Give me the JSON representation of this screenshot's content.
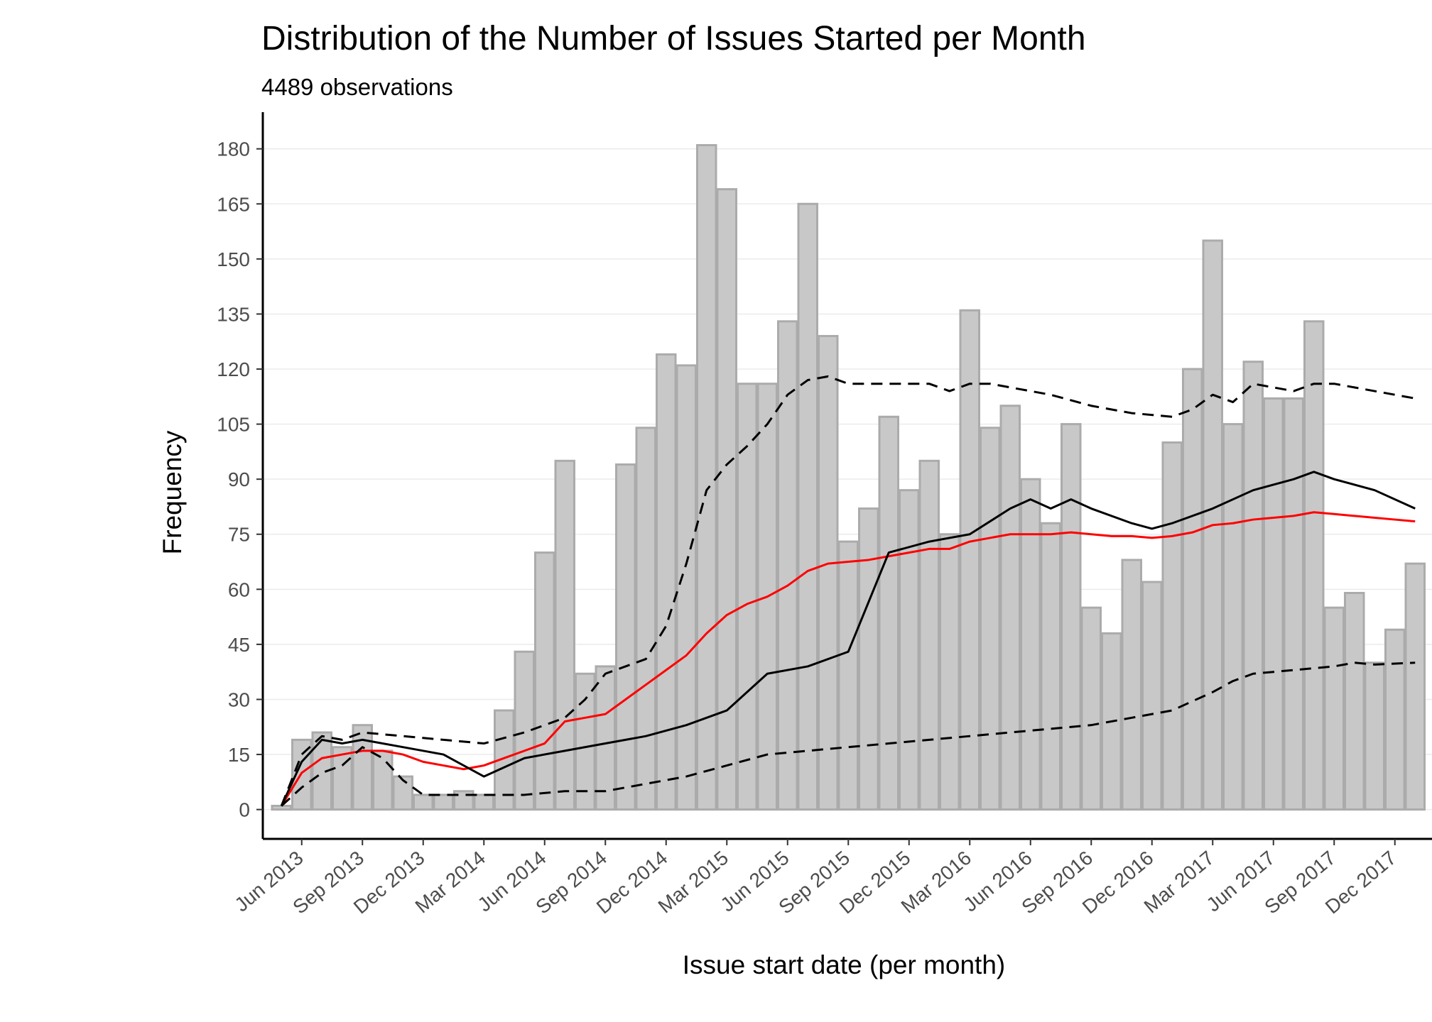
{
  "chart_data": {
    "type": "bar",
    "title": "Distribution of the Number of Issues Started per Month",
    "subtitle": "4489 observations",
    "xlabel": "Issue start date (per month)",
    "ylabel": "Frequency",
    "ylim": [
      -8,
      190
    ],
    "yticks": [
      0,
      15,
      30,
      45,
      60,
      75,
      90,
      105,
      120,
      135,
      150,
      165,
      180
    ],
    "x_tick_labels": [
      "Jun 2013",
      "Sep 2013",
      "Dec 2013",
      "Mar 2014",
      "Jun 2014",
      "Sep 2014",
      "Dec 2014",
      "Mar 2015",
      "Jun 2015",
      "Sep 2015",
      "Dec 2015",
      "Mar 2016",
      "Jun 2016",
      "Sep 2016",
      "Dec 2016",
      "Mar 2017",
      "Jun 2017",
      "Sep 2017",
      "Dec 2017"
    ],
    "grid": "horizontal major",
    "legend": "none",
    "x": [
      "2013-05",
      "2013-06",
      "2013-07",
      "2013-08",
      "2013-09",
      "2013-10",
      "2013-11",
      "2013-12",
      "2014-01",
      "2014-02",
      "2014-03",
      "2014-04",
      "2014-05",
      "2014-06",
      "2014-07",
      "2014-08",
      "2014-09",
      "2014-10",
      "2014-11",
      "2014-12",
      "2015-01",
      "2015-02",
      "2015-03",
      "2015-04",
      "2015-05",
      "2015-06",
      "2015-07",
      "2015-08",
      "2015-09",
      "2015-10",
      "2015-11",
      "2015-12",
      "2016-01",
      "2016-02",
      "2016-03",
      "2016-04",
      "2016-05",
      "2016-06",
      "2016-07",
      "2016-08",
      "2016-09",
      "2016-10",
      "2016-11",
      "2016-12",
      "2017-01",
      "2017-02",
      "2017-03",
      "2017-04",
      "2017-05",
      "2017-06",
      "2017-07",
      "2017-08",
      "2017-09",
      "2017-10",
      "2017-11",
      "2017-12",
      "2018-01"
    ],
    "values": [
      1,
      19,
      21,
      17,
      23,
      16,
      9,
      4,
      4,
      5,
      4,
      27,
      43,
      70,
      95,
      37,
      39,
      94,
      104,
      124,
      121,
      181,
      169,
      116,
      116,
      133,
      165,
      129,
      73,
      82,
      107,
      87,
      95,
      75,
      136,
      104,
      110,
      90,
      78,
      105,
      55,
      48,
      68,
      62,
      100,
      120,
      155,
      105,
      122,
      112,
      112,
      133,
      55,
      59,
      40,
      49,
      67
    ],
    "series": [
      {
        "values": [
          [
            0,
            1
          ],
          [
            0.5,
            10
          ],
          [
            1,
            14
          ],
          [
            1.5,
            15
          ],
          [
            2,
            16
          ],
          [
            2.5,
            16
          ],
          [
            3,
            15
          ],
          [
            3.5,
            13
          ],
          [
            4,
            12
          ],
          [
            4.5,
            11
          ],
          [
            5,
            12
          ],
          [
            5.5,
            14
          ],
          [
            6,
            16
          ],
          [
            6.5,
            18
          ],
          [
            7,
            24
          ],
          [
            7.5,
            25
          ],
          [
            8,
            26
          ],
          [
            8.5,
            30
          ],
          [
            9,
            34
          ],
          [
            9.5,
            38
          ],
          [
            10,
            42
          ],
          [
            10.5,
            48
          ],
          [
            11,
            53
          ],
          [
            11.5,
            56
          ],
          [
            12,
            58
          ],
          [
            12.5,
            61
          ],
          [
            13,
            65
          ],
          [
            13.5,
            67
          ],
          [
            14,
            67.5
          ],
          [
            14.5,
            68
          ],
          [
            15,
            69
          ],
          [
            15.5,
            70
          ],
          [
            16,
            71
          ],
          [
            16.5,
            71
          ],
          [
            17,
            73
          ],
          [
            17.5,
            74
          ],
          [
            18,
            75
          ],
          [
            18.5,
            75
          ],
          [
            19,
            75
          ],
          [
            19.5,
            75.5
          ],
          [
            20,
            75
          ],
          [
            20.5,
            74.5
          ],
          [
            21,
            74.5
          ],
          [
            21.5,
            74
          ],
          [
            22,
            74.5
          ],
          [
            22.5,
            75.5
          ],
          [
            23,
            77.5
          ],
          [
            23.5,
            78
          ],
          [
            24,
            79
          ],
          [
            24.5,
            79.5
          ],
          [
            25,
            80
          ],
          [
            25.5,
            81
          ],
          [
            26,
            80.5
          ],
          [
            26.5,
            80
          ],
          [
            27,
            79.5
          ],
          [
            27.5,
            79
          ],
          [
            28,
            78.5
          ]
        ],
        "color": "#ff0000",
        "style": "solid"
      },
      {
        "values": [
          [
            0,
            1
          ],
          [
            0.5,
            13
          ],
          [
            1,
            19
          ],
          [
            1.5,
            18
          ],
          [
            2,
            19
          ],
          [
            3,
            17
          ],
          [
            4,
            15
          ],
          [
            5,
            9
          ],
          [
            6,
            14
          ],
          [
            7,
            16
          ],
          [
            8,
            18
          ],
          [
            9,
            20
          ],
          [
            10,
            23
          ],
          [
            11,
            27
          ],
          [
            12,
            37
          ],
          [
            13,
            39
          ],
          [
            14,
            43
          ],
          [
            15,
            70
          ],
          [
            16,
            73
          ],
          [
            17,
            75
          ],
          [
            18,
            82
          ],
          [
            18.5,
            84.5
          ],
          [
            19,
            82
          ],
          [
            19.5,
            84.5
          ],
          [
            20,
            82
          ],
          [
            21,
            78
          ],
          [
            21.5,
            76.5
          ],
          [
            22,
            78
          ],
          [
            23,
            82
          ],
          [
            24,
            87
          ],
          [
            25,
            90
          ],
          [
            25.5,
            92
          ],
          [
            26,
            90
          ],
          [
            27,
            87
          ],
          [
            28,
            82
          ]
        ],
        "color": "#000000",
        "style": "solid"
      },
      {
        "values": [
          [
            0,
            1
          ],
          [
            0.5,
            15
          ],
          [
            1,
            20
          ],
          [
            1.5,
            19
          ],
          [
            2,
            21
          ],
          [
            3,
            20
          ],
          [
            4,
            19
          ],
          [
            5,
            18
          ],
          [
            6,
            21
          ],
          [
            7,
            25
          ],
          [
            7.5,
            30
          ],
          [
            8,
            37
          ],
          [
            9,
            41
          ],
          [
            9.5,
            50
          ],
          [
            10,
            67
          ],
          [
            10.5,
            87
          ],
          [
            11,
            94
          ],
          [
            11.5,
            99
          ],
          [
            12,
            105
          ],
          [
            12.5,
            113
          ],
          [
            13,
            117
          ],
          [
            13.5,
            118
          ],
          [
            14,
            116
          ],
          [
            15,
            116
          ],
          [
            16,
            116
          ],
          [
            16.5,
            114
          ],
          [
            17,
            116
          ],
          [
            17.5,
            116
          ],
          [
            18,
            115
          ],
          [
            19,
            113
          ],
          [
            20,
            110
          ],
          [
            21,
            108
          ],
          [
            22,
            107
          ],
          [
            22.5,
            109
          ],
          [
            23,
            113
          ],
          [
            23.5,
            111
          ],
          [
            24,
            116
          ],
          [
            25,
            114
          ],
          [
            25.5,
            116
          ],
          [
            26,
            116
          ],
          [
            27,
            114
          ],
          [
            28,
            112
          ]
        ],
        "color": "#000000",
        "style": "dashed"
      },
      {
        "values": [
          [
            0,
            1
          ],
          [
            0.5,
            6
          ],
          [
            1,
            10
          ],
          [
            1.5,
            12
          ],
          [
            2,
            17
          ],
          [
            2.5,
            14
          ],
          [
            3,
            8
          ],
          [
            3.5,
            4
          ],
          [
            4,
            4
          ],
          [
            5,
            4
          ],
          [
            6,
            4
          ],
          [
            7,
            5
          ],
          [
            8,
            5
          ],
          [
            9,
            7
          ],
          [
            10,
            9
          ],
          [
            11,
            12
          ],
          [
            12,
            15
          ],
          [
            13,
            16
          ],
          [
            14,
            17
          ],
          [
            15,
            18
          ],
          [
            16,
            19
          ],
          [
            17,
            20
          ],
          [
            18,
            21
          ],
          [
            19,
            22
          ],
          [
            20,
            23
          ],
          [
            21,
            25
          ],
          [
            22,
            27
          ],
          [
            23,
            32
          ],
          [
            23.5,
            35
          ],
          [
            24,
            37
          ],
          [
            25,
            38
          ],
          [
            26,
            39
          ],
          [
            26.5,
            40
          ],
          [
            27,
            39.5
          ],
          [
            28,
            40
          ]
        ],
        "color": "#000000",
        "style": "dashed"
      }
    ],
    "bar_fill": "#c8c8c8",
    "bar_stroke": "#ababab"
  }
}
